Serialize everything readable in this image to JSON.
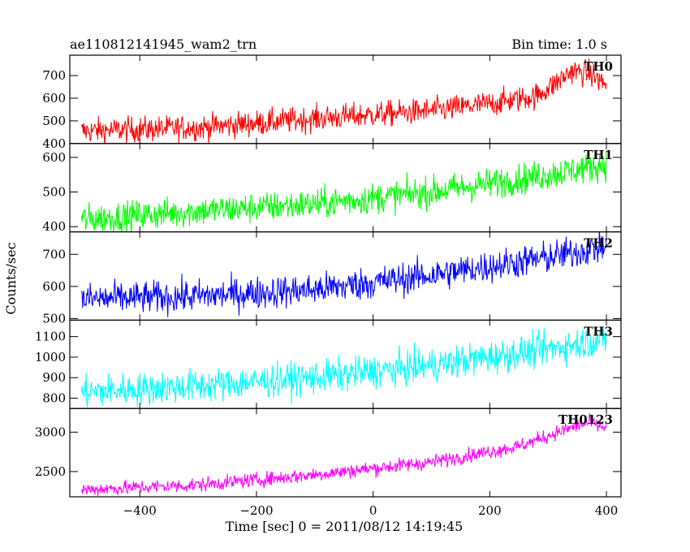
{
  "header": {
    "title": "ae110812141945_wam2_trn",
    "bin_time": "Bin time: 1.0 s"
  },
  "chart_data": {
    "type": "line",
    "title": "ae110812141945_wam2_trn",
    "subtitle": "Bin time: 1.0 s",
    "xlabel": "Time [sec] 0 = 2011/08/12 14:19:45",
    "ylabel": "Counts/sec",
    "xlim": [
      -520,
      425
    ],
    "x_ticks": [
      -400,
      -200,
      0,
      200,
      400
    ],
    "x_range": [
      -500,
      400
    ],
    "bin_time_s": 1.0,
    "panels": [
      {
        "name": "TH0",
        "color": "#ff0000",
        "ylim": [
          400,
          790
        ],
        "y_ticks": [
          400,
          500,
          600,
          700
        ],
        "noise": 28,
        "trend": [
          [
            -500,
            455
          ],
          [
            -300,
            470
          ],
          [
            -100,
            510
          ],
          [
            100,
            545
          ],
          [
            200,
            575
          ],
          [
            280,
            610
          ],
          [
            310,
            660
          ],
          [
            340,
            720
          ],
          [
            370,
            710
          ],
          [
            400,
            660
          ]
        ]
      },
      {
        "name": "TH1",
        "color": "#00ff00",
        "ylim": [
          385,
          640
        ],
        "y_ticks": [
          400,
          500,
          600
        ],
        "noise": 22,
        "trend": [
          [
            -500,
            420
          ],
          [
            -300,
            445
          ],
          [
            -100,
            465
          ],
          [
            100,
            500
          ],
          [
            300,
            550
          ],
          [
            400,
            580
          ]
        ]
      },
      {
        "name": "TH2",
        "color": "#0000ff",
        "ylim": [
          495,
          770
        ],
        "y_ticks": [
          500,
          600,
          700
        ],
        "noise": 25,
        "trend": [
          [
            -500,
            560
          ],
          [
            -300,
            570
          ],
          [
            -100,
            590
          ],
          [
            100,
            635
          ],
          [
            300,
            690
          ],
          [
            400,
            725
          ]
        ]
      },
      {
        "name": "TH3",
        "color": "#00ffff",
        "ylim": [
          750,
          1180
        ],
        "y_ticks": [
          800,
          900,
          1000,
          1100
        ],
        "noise": 40,
        "trend": [
          [
            -500,
            830
          ],
          [
            -300,
            860
          ],
          [
            -100,
            900
          ],
          [
            100,
            960
          ],
          [
            300,
            1040
          ],
          [
            400,
            1090
          ]
        ]
      },
      {
        "name": "TH0123",
        "color": "#ff00ff",
        "ylim": [
          2180,
          3300
        ],
        "y_ticks": [
          2500,
          3000
        ],
        "noise": 45,
        "trend": [
          [
            -500,
            2270
          ],
          [
            -300,
            2330
          ],
          [
            -100,
            2460
          ],
          [
            100,
            2620
          ],
          [
            250,
            2820
          ],
          [
            340,
            3060
          ],
          [
            370,
            3120
          ],
          [
            400,
            3050
          ]
        ]
      }
    ]
  }
}
